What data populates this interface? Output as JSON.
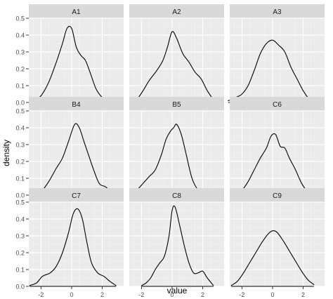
{
  "chart_data": {
    "type": "line",
    "chart_kind": "density faceted",
    "xlabel": "value",
    "ylabel": "density",
    "xlim": [
      -2.8,
      3.4
    ],
    "ylim": [
      0,
      0.5
    ],
    "x_ticks": [
      -2,
      0,
      2
    ],
    "y_ticks": [
      0,
      0.1,
      0.2,
      0.3,
      0.4,
      0.5
    ],
    "x_tick_labels": [
      "-2",
      "0",
      "2"
    ],
    "y_tick_labels": [
      "0.0",
      "0.1",
      "0.2",
      "0.3",
      "0.4",
      "0.5"
    ],
    "grid": true,
    "facet_layout": {
      "rows": 3,
      "cols": 3
    },
    "colors": {
      "panel_background": "#ebebeb",
      "strip_background": "#d9d9d9",
      "grid_major": "#ffffff",
      "grid_minor": "#f4f4f4",
      "line": "#000000",
      "text": "#4d4d4d",
      "axis_title": "#000000"
    },
    "facets": [
      {
        "label": "A1",
        "x": [
          -2.45,
          -2.0,
          -1.5,
          -1.0,
          -0.6,
          -0.3,
          0.0,
          0.3,
          0.6,
          0.9,
          1.2,
          1.6,
          2.0,
          2.4,
          2.75
        ],
        "y": [
          0.01,
          0.04,
          0.12,
          0.24,
          0.35,
          0.44,
          0.44,
          0.33,
          0.28,
          0.25,
          0.18,
          0.08,
          0.03,
          0.01,
          0.005
        ]
      },
      {
        "label": "A2",
        "x": [
          -2.75,
          -2.3,
          -1.9,
          -1.5,
          -1.0,
          -0.6,
          -0.3,
          0.0,
          0.3,
          0.7,
          1.1,
          1.5,
          1.9,
          2.3,
          2.75
        ],
        "y": [
          0.005,
          0.02,
          0.07,
          0.13,
          0.19,
          0.25,
          0.33,
          0.42,
          0.38,
          0.29,
          0.24,
          0.18,
          0.14,
          0.07,
          0.01
        ]
      },
      {
        "label": "A3",
        "x": [
          -2.9,
          -2.4,
          -2.0,
          -1.6,
          -1.2,
          -0.8,
          -0.4,
          0.0,
          0.4,
          0.8,
          1.2,
          1.6,
          2.0,
          2.4,
          2.8
        ],
        "y": [
          0.01,
          0.03,
          0.05,
          0.1,
          0.19,
          0.29,
          0.35,
          0.37,
          0.34,
          0.3,
          0.21,
          0.14,
          0.07,
          0.02,
          0.005
        ]
      },
      {
        "label": "B4",
        "x": [
          -2.4,
          -2.0,
          -1.5,
          -1.0,
          -0.6,
          -0.2,
          0.2,
          0.5,
          0.8,
          1.1,
          1.4,
          1.8,
          2.2,
          2.6,
          3.0
        ],
        "y": [
          0.005,
          0.02,
          0.08,
          0.16,
          0.22,
          0.32,
          0.42,
          0.4,
          0.32,
          0.24,
          0.16,
          0.07,
          0.05,
          0.02,
          0.005
        ]
      },
      {
        "label": "B5",
        "x": [
          -2.75,
          -2.3,
          -1.9,
          -1.5,
          -1.1,
          -0.7,
          -0.4,
          -0.1,
          0.1,
          0.3,
          0.6,
          0.9,
          1.3,
          1.7,
          2.1
        ],
        "y": [
          0.005,
          0.03,
          0.07,
          0.11,
          0.15,
          0.24,
          0.33,
          0.38,
          0.4,
          0.42,
          0.36,
          0.25,
          0.1,
          0.03,
          0.005
        ]
      },
      {
        "label": "C6",
        "x": [
          -2.5,
          -2.0,
          -1.6,
          -1.2,
          -0.8,
          -0.4,
          -0.1,
          0.2,
          0.5,
          0.8,
          1.1,
          1.5,
          1.9,
          2.3,
          2.7
        ],
        "y": [
          0.005,
          0.03,
          0.08,
          0.15,
          0.22,
          0.28,
          0.35,
          0.36,
          0.29,
          0.28,
          0.22,
          0.15,
          0.07,
          0.02,
          0.005
        ]
      },
      {
        "label": "C7",
        "x": [
          -2.75,
          -2.3,
          -1.9,
          -1.4,
          -1.0,
          -0.6,
          -0.2,
          0.1,
          0.4,
          0.7,
          1.0,
          1.3,
          1.7,
          2.1,
          2.5,
          2.9
        ],
        "y": [
          0.005,
          0.02,
          0.06,
          0.08,
          0.12,
          0.2,
          0.32,
          0.43,
          0.46,
          0.4,
          0.26,
          0.14,
          0.08,
          0.06,
          0.03,
          0.005
        ]
      },
      {
        "label": "C8",
        "x": [
          -2.0,
          -1.7,
          -1.4,
          -1.1,
          -0.8,
          -0.5,
          -0.2,
          0.0,
          0.2,
          0.5,
          0.8,
          1.1,
          1.4,
          1.7,
          2.0,
          2.3,
          2.7
        ],
        "y": [
          0.005,
          0.02,
          0.05,
          0.1,
          0.14,
          0.18,
          0.3,
          0.45,
          0.47,
          0.36,
          0.24,
          0.14,
          0.08,
          0.08,
          0.09,
          0.05,
          0.005
        ]
      },
      {
        "label": "C9",
        "x": [
          -2.7,
          -2.3,
          -1.9,
          -1.5,
          -1.1,
          -0.7,
          -0.3,
          0.0,
          0.3,
          0.7,
          1.1,
          1.5,
          1.9,
          2.3,
          2.7
        ],
        "y": [
          0.005,
          0.03,
          0.08,
          0.14,
          0.2,
          0.26,
          0.31,
          0.33,
          0.32,
          0.27,
          0.21,
          0.15,
          0.09,
          0.04,
          0.01
        ]
      }
    ]
  }
}
